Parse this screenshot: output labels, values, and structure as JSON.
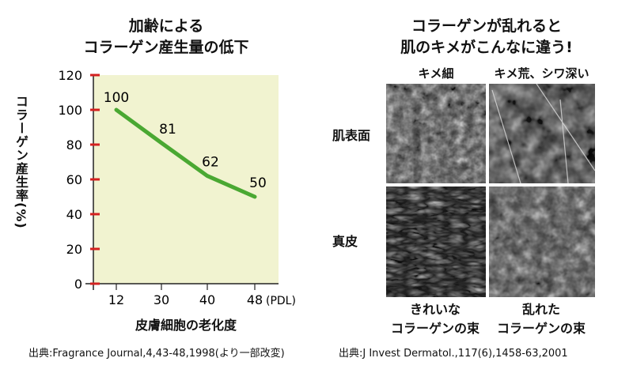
{
  "left_title": {
    "line1": "加齢による",
    "line2": "コラーゲン産生量の低下"
  },
  "right_title": {
    "line1": "コラーゲンが乱れると",
    "line2": "肌のキメがこんなに違う!"
  },
  "chart_data": {
    "type": "line",
    "ylabel": "コラーゲン産生率(%)",
    "xlabel": "皮膚細胞の老化度",
    "x_unit": "(PDL)",
    "x": [
      12,
      30,
      40,
      48
    ],
    "y_ticks": [
      0,
      20,
      40,
      60,
      80,
      100,
      120
    ],
    "ylim": [
      0,
      120
    ],
    "series": [
      {
        "values": [
          100,
          81,
          62,
          50
        ]
      }
    ],
    "data_labels": [
      "100",
      "81",
      "62",
      "50"
    ],
    "colors": {
      "line": "#4aa832",
      "plot_bg": "#f1f3d0",
      "tick": "#d4201f"
    }
  },
  "photos": {
    "col_left": "キメ細",
    "col_right": "キメ荒、シワ深い",
    "row_top": "肌表面",
    "row_bottom": "真皮",
    "caption_left": {
      "line1": "きれいな",
      "line2": "コラーゲンの束"
    },
    "caption_right": {
      "line1": "乱れた",
      "line2": "コラーゲンの束"
    }
  },
  "sources": {
    "left": "出典:Fragrance Journal,4,43-48,1998(より一部改変)",
    "right": "出典:J Invest Dermatol.,117(6),1458-63,2001"
  }
}
